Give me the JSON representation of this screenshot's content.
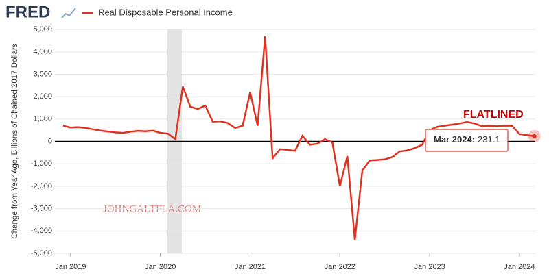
{
  "chart_data": {
    "type": "line",
    "logo": "FRED",
    "y_label": "Change from Year Ago, Billions of Chained 2017 Dollars",
    "annotation": "FLATLINED",
    "watermark": "JOHNGALTFLA.COM",
    "tooltip_label": "Mar 2024:",
    "categories": [
      null,
      "Jan 2019",
      null,
      null,
      null,
      null,
      null,
      null,
      null,
      null,
      null,
      null,
      null,
      "Jan 2020",
      null,
      null,
      null,
      null,
      null,
      null,
      null,
      null,
      null,
      null,
      null,
      "Jan 2021",
      null,
      null,
      null,
      null,
      null,
      null,
      null,
      null,
      null,
      null,
      null,
      "Jan 2022",
      null,
      null,
      null,
      null,
      null,
      null,
      null,
      null,
      null,
      null,
      null,
      "Jan 2023",
      null,
      null,
      null,
      null,
      null,
      null,
      null,
      null,
      null,
      null,
      null,
      "Jan 2024",
      null,
      null
    ],
    "series": [
      {
        "name": "Real Disposable Personal Income",
        "color": "#e0301e",
        "values": [
          700,
          620,
          640,
          600,
          540,
          480,
          440,
          400,
          380,
          430,
          470,
          450,
          480,
          380,
          350,
          100,
          2450,
          1550,
          1450,
          1600,
          880,
          900,
          820,
          600,
          700,
          2200,
          700,
          4700,
          -750,
          -350,
          -380,
          -420,
          250,
          -150,
          -100,
          100,
          -50,
          -2000,
          -650,
          -4400,
          -1300,
          -850,
          -830,
          -800,
          -700,
          -450,
          -400,
          -300,
          -150,
          500,
          650,
          700,
          750,
          800,
          870,
          800,
          680,
          700,
          680,
          700,
          700,
          330,
          280,
          231.1
        ]
      }
    ],
    "ylim": [
      -5000,
      5000
    ],
    "yticks": [
      {
        "value": -5000,
        "label": "-5,000"
      },
      {
        "value": -4000,
        "label": "-4,000"
      },
      {
        "value": -3000,
        "label": "-3,000"
      },
      {
        "value": -2000,
        "label": "-2,000"
      },
      {
        "value": -1000,
        "label": "-1,000"
      },
      0,
      {
        "value": 1000,
        "label": "1,000"
      },
      {
        "value": 2000,
        "label": "2,000"
      },
      {
        "value": 3000,
        "label": "3,000"
      },
      {
        "value": 4000,
        "label": "4,000"
      },
      {
        "value": 5000,
        "label": "5,000"
      }
    ],
    "grid": true
  }
}
